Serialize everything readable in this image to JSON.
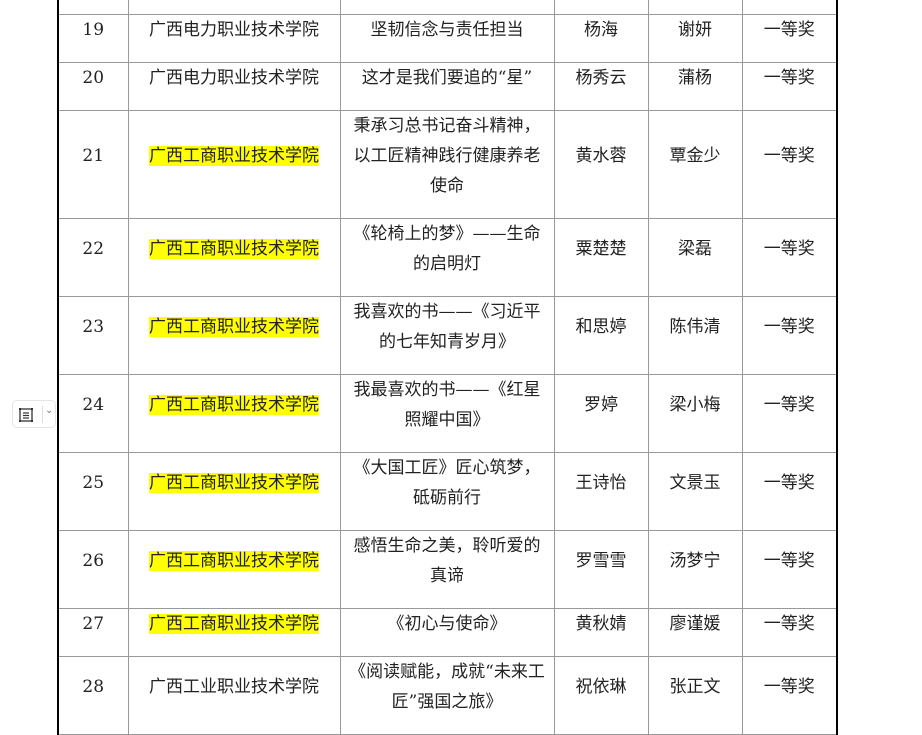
{
  "rows": [
    {
      "no": "19",
      "school": "广西电力职业技术学院",
      "title": "坚韧信念与责任担当",
      "student": "杨海",
      "teacher": "谢妍",
      "award": "一等奖",
      "highlight": false
    },
    {
      "no": "20",
      "school": "广西电力职业技术学院",
      "title": "这才是我们要追的“星”",
      "student": "杨秀云",
      "teacher": "蒲杨",
      "award": "一等奖",
      "highlight": false
    },
    {
      "no": "21",
      "school": "广西工商职业技术学院",
      "title": "秉承习总书记奋斗精神，以工匠精神践行健康养老使命",
      "student": "黄水蓉",
      "teacher": "覃金少",
      "award": "一等奖",
      "highlight": true
    },
    {
      "no": "22",
      "school": "广西工商职业技术学院",
      "title": "《轮椅上的梦》——生命的启明灯",
      "student": "粟楚楚",
      "teacher": "梁磊",
      "award": "一等奖",
      "highlight": true
    },
    {
      "no": "23",
      "school": "广西工商职业技术学院",
      "title": "我喜欢的书——《习近平的七年知青岁月》",
      "student": "和思婷",
      "teacher": "陈伟清",
      "award": "一等奖",
      "highlight": true
    },
    {
      "no": "24",
      "school": "广西工商职业技术学院",
      "title": "我最喜欢的书——《红星照耀中国》",
      "student": "罗婷",
      "teacher": "梁小梅",
      "award": "一等奖",
      "highlight": true
    },
    {
      "no": "25",
      "school": "广西工商职业技术学院",
      "title": "《大国工匠》匠心筑梦，砥砺前行",
      "student": "王诗怡",
      "teacher": "文景玉",
      "award": "一等奖",
      "highlight": true
    },
    {
      "no": "26",
      "school": "广西工商职业技术学院",
      "title": "感悟生命之美，聆听爱的真谛",
      "student": "罗雪雪",
      "teacher": "汤梦宁",
      "award": "一等奖",
      "highlight": true
    },
    {
      "no": "27",
      "school": "广西工商职业技术学院",
      "title": "《初心与使命》",
      "student": "黄秋婧",
      "teacher": "廖谨媛",
      "award": "一等奖",
      "highlight": true
    },
    {
      "no": "28",
      "school": "广西工业职业技术学院",
      "title": "《阅读赋能，成就“未来工匠”强国之旅》",
      "student": "祝依琳",
      "teacher": "张正文",
      "award": "一等奖",
      "highlight": false
    }
  ],
  "colors": {
    "highlight": "#ffff00",
    "border": "#999999"
  },
  "toolbar": {
    "icon": "outline-list-icon",
    "dropdown_icon": "chevron-down-icon"
  }
}
